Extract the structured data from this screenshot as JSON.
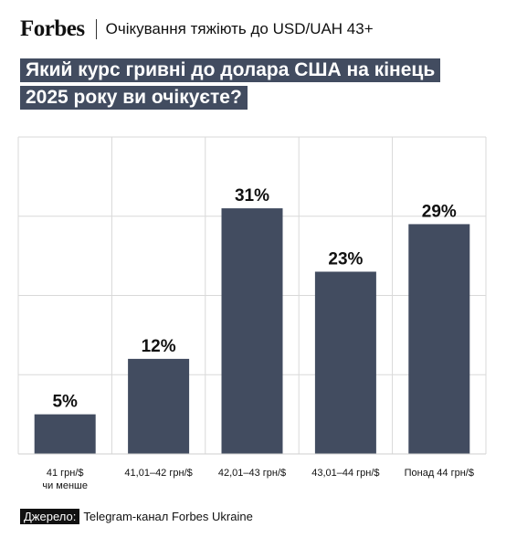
{
  "header": {
    "logo": "Forbes",
    "title": "Очікування тяжіють до USD/UAH 43+"
  },
  "question": {
    "line1": "Який курс гривні до долара США на кінець",
    "line2": "2025 року ви очікуєте?"
  },
  "chart_data": {
    "type": "bar",
    "title": "Який курс гривні до долара США на кінець 2025 року ви очікуєте?",
    "categories": [
      [
        "41 грн/$",
        "чи менше"
      ],
      [
        "41,01–42 грн/$"
      ],
      [
        "42,01–43 грн/$"
      ],
      [
        "43,01–44 грн/$"
      ],
      [
        "Понад 44 грн/$"
      ]
    ],
    "values": [
      5,
      12,
      31,
      23,
      29
    ],
    "value_labels": [
      "5%",
      "12%",
      "31%",
      "23%",
      "29%"
    ],
    "ylim": [
      0,
      40
    ],
    "grid": true,
    "bar_color": "#424c60",
    "grid_color": "#d9d9d9"
  },
  "source": {
    "label": "Джерело:",
    "text": "Telegram-канал Forbes Ukraine"
  }
}
